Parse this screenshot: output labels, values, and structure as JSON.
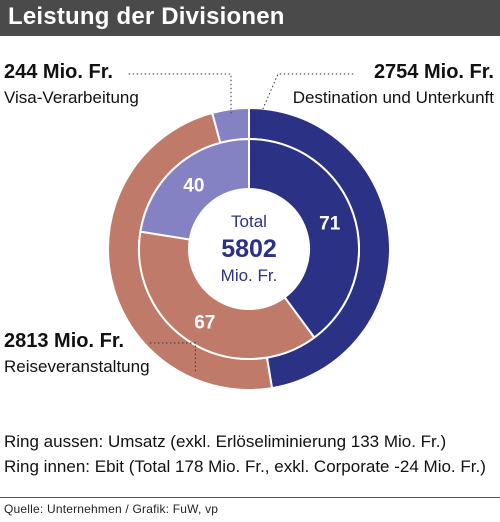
{
  "title": "Leistung der Divisionen",
  "chart_data": {
    "type": "pie",
    "subtype": "nested-donut",
    "center": {
      "line1": "Total",
      "value": "5802",
      "unit": "Mio. Fr."
    },
    "outer_ring": {
      "name": "Umsatz",
      "slices": [
        {
          "label": "Destination und Unterkunft",
          "value": 2754,
          "value_text": "2754 Mio. Fr.",
          "color": "#2b3184"
        },
        {
          "label": "Reiseveranstaltung",
          "value": 2813,
          "value_text": "2813 Mio. Fr.",
          "color": "#c07a6a"
        },
        {
          "label": "Visa-Verarbeitung",
          "value": 244,
          "value_text": "244 Mio. Fr.",
          "color": "#8482c2"
        }
      ]
    },
    "inner_ring": {
      "name": "Ebit",
      "slices": [
        {
          "label": "Destination und Unterkunft",
          "value": 71,
          "color": "#2b3184"
        },
        {
          "label": "Reiseveranstaltung",
          "value": 67,
          "color": "#c07a6a"
        },
        {
          "label": "Visa-Verarbeitung",
          "value": 40,
          "color": "#8482c2"
        }
      ]
    }
  },
  "notes": {
    "outer": "Ring aussen: Umsatz (exkl. Erlöseliminierung 133 Mio. Fr.)",
    "inner": "Ring innen: Ebit (Total 178 Mio. Fr., exkl. Corporate -24 Mio. Fr.)"
  },
  "source": "Quelle: Unternehmen / Grafik: FuW, vp"
}
